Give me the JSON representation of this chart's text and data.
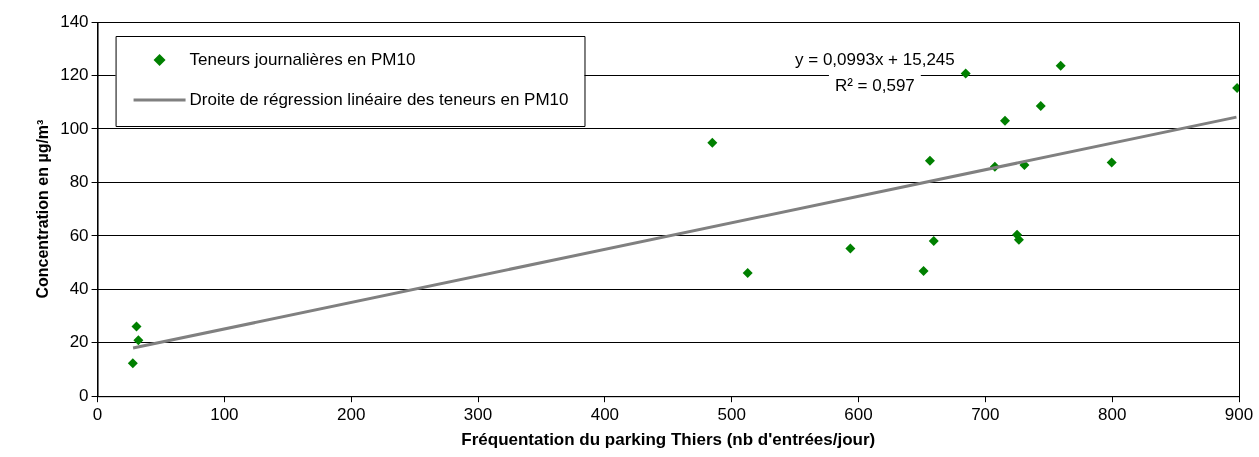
{
  "chart_data": {
    "type": "scatter",
    "xlabel": "Fréquentation du parking Thiers (nb d'entrées/jour)",
    "ylabel": "Concentration en µg/m³",
    "series": [
      {
        "name": "Teneurs journalières en PM10",
        "color": "#008000",
        "type": "scatter",
        "marker": "diamond",
        "x": [
          27.8,
          30.7,
          32.2,
          484.7,
          512.6,
          593.6,
          651.3,
          656.3,
          659.3,
          684.5,
          707.5,
          715.5,
          725,
          726.5,
          730.8,
          743.7,
          759.4,
          799.6,
          898.5
        ],
        "values": [
          12.3,
          26.1,
          20.9,
          94.8,
          46.1,
          55.3,
          46.8,
          88.1,
          58.1,
          120.7,
          85.8,
          103.1,
          60.4,
          58.5,
          86.5,
          108.6,
          123.6,
          87.4,
          115.3
        ]
      },
      {
        "name": "Droite de régression linéaire des teneurs en PM10",
        "color": "#808080",
        "type": "line",
        "marker": "none",
        "line_style": "solid",
        "x": [
          28,
          898
        ],
        "values": [
          18.0,
          104.4
        ]
      }
    ],
    "xlim": [
      0,
      900
    ],
    "xticks": [
      0,
      100,
      200,
      300,
      400,
      500,
      600,
      700,
      800,
      900
    ],
    "ylim": [
      0,
      140
    ],
    "yticks": [
      0,
      20,
      40,
      60,
      80,
      100,
      120,
      140
    ],
    "grid": "y",
    "legend": "top left",
    "annotations": [
      "y = 0,0993x + 15,245",
      "R² = 0,597"
    ]
  }
}
